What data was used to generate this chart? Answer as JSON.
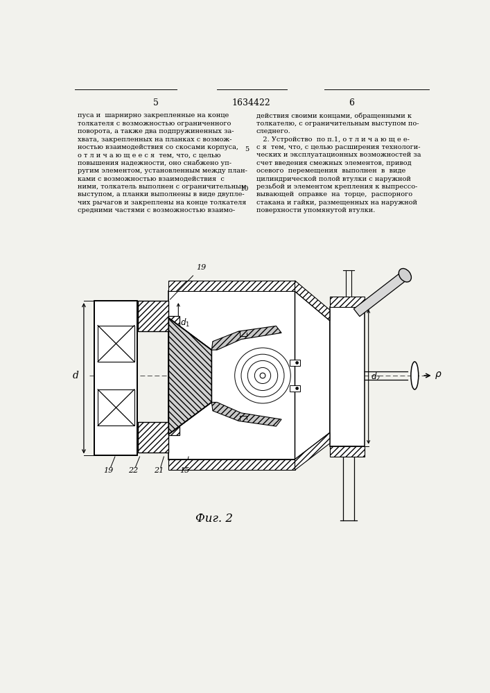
{
  "bg_color": "#f2f2ed",
  "page_num_left": "5",
  "page_num_center": "1634422",
  "page_num_right": "6",
  "left_col_lines": [
    "пуса и  шарнирно закрепленные на конце",
    "толкателя с возможностью ограниченного",
    "поворота, а также два подпружиненных за-",
    "хвата, закрепленных на планках с возмож-",
    "ностью взаимодействия со скосами корпуса,",
    "о т л и ч а ю щ е е с я  тем, что, с целью",
    "повышения надежности, оно снабжено уп-",
    "ругим элементом, установленным между план-",
    "ками с возможностью взаимодействия  с",
    "ними, толкатель выполнен с ограничительным",
    "выступом, а планки выполнены в виде двупле-",
    "чих рычагов и закреплены на конце толкателя",
    "средними частями с возможностью взаимо-"
  ],
  "right_col_lines": [
    "действия своими концами, обращенными к",
    "толкателю, с ограничительным выступом по-",
    "следнего.",
    "   2. Устройство  по п.1, о т л и ч а ю щ е е-",
    "с я  тем, что, с целью расширения технологи-",
    "ческих и эксплуатационных возможностей за",
    "счет введения смежных элементов, привод",
    "осевого  перемещения  выполнен  в  виде",
    "цилиндрической полой втулки с наружной",
    "резьбой и элементом крепления к выпрессо-",
    "вывающей  оправке  на  торце,  распорного",
    "стакана и гайки, размещенных на наружной",
    "поверхности упомянутой втулки."
  ],
  "fig_caption": "Фиг. 2"
}
